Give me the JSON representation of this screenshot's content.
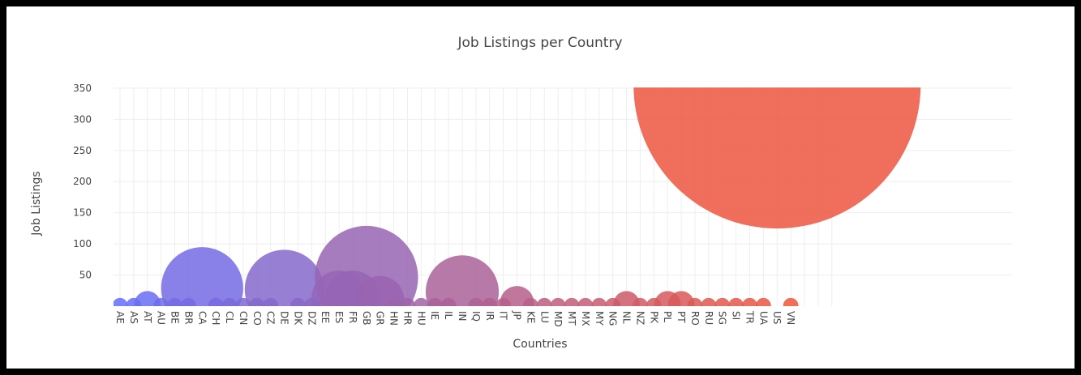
{
  "chart_data": {
    "type": "scatter",
    "title": "Job Listings per Country",
    "xlabel": "Countries",
    "ylabel": "Job Listings",
    "categories": [
      "AE",
      "AS",
      "AT",
      "AU",
      "BE",
      "BR",
      "CA",
      "CH",
      "CL",
      "CN",
      "CO",
      "CZ",
      "DE",
      "DK",
      "DZ",
      "EE",
      "ES",
      "FR",
      "GB",
      "GR",
      "HN",
      "HR",
      "HU",
      "IE",
      "IL",
      "IN",
      "IQ",
      "IR",
      "IT",
      "JP",
      "KE",
      "LU",
      "MD",
      "MT",
      "MX",
      "MY",
      "NG",
      "NL",
      "NZ",
      "PK",
      "PL",
      "PT",
      "RO",
      "RU",
      "SG",
      "SI",
      "TR",
      "UA",
      "US",
      "VN"
    ],
    "values": [
      1,
      1,
      3,
      1,
      1,
      1,
      29,
      1,
      1,
      1,
      1,
      1,
      27,
      1,
      1,
      1,
      13,
      13,
      46,
      10,
      1,
      1,
      1,
      1,
      1,
      23,
      1,
      1,
      1,
      5,
      1,
      1,
      1,
      1,
      1,
      1,
      1,
      3,
      1,
      1,
      3,
      3,
      1,
      1,
      1,
      1,
      1,
      1,
      355,
      1
    ],
    "ylim": [
      0,
      355
    ],
    "yticks": [
      50,
      100,
      150,
      200,
      250,
      300,
      350
    ],
    "marker_size_encodes": "Job Listings",
    "color_scale": [
      "#636efa",
      "#ef553b"
    ],
    "grid": true,
    "legend": "none"
  }
}
